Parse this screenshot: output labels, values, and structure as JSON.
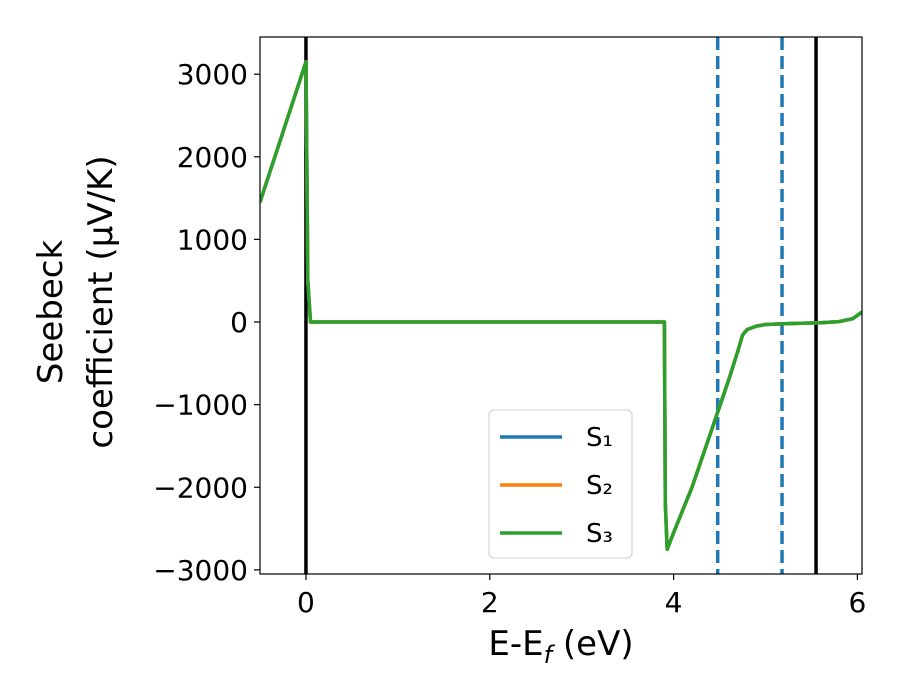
{
  "chart_data": {
    "type": "line",
    "xlabel": "E-E_f (eV)",
    "xlabel_parts": {
      "pre": "E-E",
      "sub": "f",
      "post": " (eV)"
    },
    "ylabel_lines": [
      "Seebeck",
      "coefficient  (μV/K)"
    ],
    "xlim": [
      -0.5,
      6.05
    ],
    "ylim": [
      -3050,
      3450
    ],
    "xticks": [
      0,
      2,
      4,
      6
    ],
    "yticks": [
      -3000,
      -2000,
      -1000,
      0,
      1000,
      2000,
      3000
    ],
    "xtick_labels": [
      "0",
      "2",
      "4",
      "6"
    ],
    "ytick_labels": [
      "−3000",
      "−2000",
      "−1000",
      "0",
      "1000",
      "2000",
      "3000"
    ],
    "grid": false,
    "legend_position": "lower center",
    "series": [
      {
        "name": "S₁",
        "color": "#1f77b4",
        "x": [
          -0.5,
          0.0,
          0.02,
          0.05,
          1.0,
          2.0,
          3.0,
          3.9,
          3.91,
          3.93,
          4.0,
          4.2,
          4.4,
          4.6,
          4.7,
          4.75,
          4.8,
          4.9,
          5.0,
          5.2,
          5.4,
          5.6,
          5.8,
          5.95,
          6.05
        ],
        "y": [
          1450,
          3150,
          500,
          0,
          0,
          0,
          0,
          0,
          -2200,
          -2750,
          -2550,
          -2000,
          -1350,
          -700,
          -350,
          -160,
          -90,
          -50,
          -30,
          -20,
          -15,
          -10,
          5,
          40,
          120
        ]
      },
      {
        "name": "S₂",
        "color": "#ff7f0e",
        "x": [
          -0.5,
          0.0,
          0.02,
          0.05,
          1.0,
          2.0,
          3.0,
          3.9,
          3.91,
          3.93,
          4.0,
          4.2,
          4.4,
          4.6,
          4.7,
          4.75,
          4.8,
          4.9,
          5.0,
          5.2,
          5.4,
          5.6,
          5.8,
          5.95,
          6.05
        ],
        "y": [
          1450,
          3150,
          500,
          0,
          0,
          0,
          0,
          0,
          -2200,
          -2750,
          -2550,
          -2000,
          -1350,
          -700,
          -350,
          -160,
          -90,
          -50,
          -30,
          -20,
          -15,
          -10,
          5,
          40,
          120
        ]
      },
      {
        "name": "S₃",
        "color": "#2ca02c",
        "x": [
          -0.5,
          0.0,
          0.02,
          0.05,
          1.0,
          2.0,
          3.0,
          3.9,
          3.91,
          3.93,
          4.0,
          4.2,
          4.4,
          4.6,
          4.7,
          4.75,
          4.8,
          4.9,
          5.0,
          5.2,
          5.4,
          5.6,
          5.8,
          5.95,
          6.05
        ],
        "y": [
          1450,
          3150,
          500,
          0,
          0,
          0,
          0,
          0,
          -2200,
          -2750,
          -2550,
          -2000,
          -1350,
          -700,
          -350,
          -160,
          -90,
          -50,
          -30,
          -20,
          -15,
          -10,
          5,
          40,
          120
        ]
      }
    ],
    "vertical_lines": [
      {
        "x": 0.0,
        "style": "solid",
        "color": "#000000"
      },
      {
        "x": 5.55,
        "style": "solid",
        "color": "#000000"
      },
      {
        "x": 4.48,
        "style": "dashed",
        "color": "#1f77b4"
      },
      {
        "x": 5.18,
        "style": "dashed",
        "color": "#1f77b4"
      }
    ]
  }
}
